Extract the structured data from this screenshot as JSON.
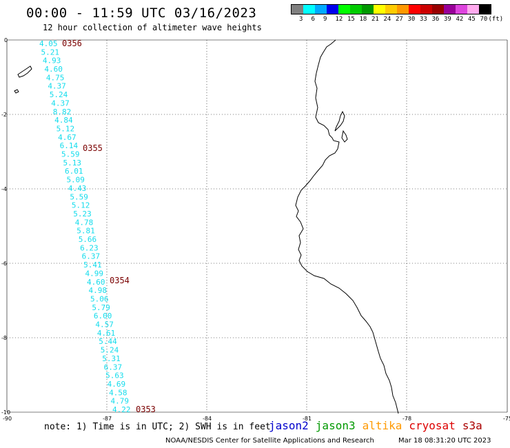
{
  "header": {
    "title": "00:00 - 11:59 UTC 03/16/2023",
    "subtitle": "12 hour collection of altimeter wave heights"
  },
  "colorbar": {
    "colors": [
      "#808080",
      "#00ffff",
      "#00aaff",
      "#0000ee",
      "#00ff00",
      "#00cc00",
      "#009900",
      "#ffff00",
      "#ffcc00",
      "#ff9900",
      "#ff0000",
      "#cc0000",
      "#990000",
      "#990099",
      "#dd44dd",
      "#ffaaee",
      "#000000"
    ],
    "labels": [
      "3",
      "6",
      "9",
      "12",
      "15",
      "18",
      "21",
      "24",
      "27",
      "30",
      "33",
      "36",
      "39",
      "42",
      "45",
      "70",
      "(ft)"
    ]
  },
  "map": {
    "lon_range": [
      -90,
      -75
    ],
    "lat_range": [
      -10,
      0
    ],
    "x_ticks": [
      "-90",
      "-87",
      "-84",
      "-81",
      "-78",
      "-75"
    ],
    "y_ticks": [
      "0",
      "-2",
      "-4",
      "-6",
      "-8",
      "-10"
    ],
    "track_color": "#14dcec",
    "wave_heights_ft": [
      "4.05",
      "5.21",
      "4.93",
      "4.60",
      "4.75",
      "4.37",
      "5.24",
      "4.37",
      "8.82",
      "4.84",
      "5.12",
      "4.67",
      "6.14",
      "5.59",
      "5.13",
      "6.01",
      "5.09",
      "4.43",
      "5.59",
      "5.12",
      "5.23",
      "4.78",
      "5.81",
      "5.66",
      "6.23",
      "6.37",
      "5.41",
      "4.99",
      "4.60",
      "4.98",
      "5.06",
      "5.79",
      "6.00",
      "4.57",
      "4.61",
      "5.44",
      "5.24",
      "5.31",
      "6.37",
      "5.63",
      "4.69",
      "4.58",
      "4.79",
      "4.22"
    ],
    "pass_labels": [
      "0356",
      "0355",
      "0354",
      "0353"
    ]
  },
  "legend": {
    "note": "note: 1) Time is in UTC; 2) SWH is in feet",
    "satellites": [
      {
        "name": "jason2",
        "color": "#0000cc"
      },
      {
        "name": "jason3",
        "color": "#009900"
      },
      {
        "name": "altika",
        "color": "#ff9900"
      },
      {
        "name": "cryosat",
        "color": "#dd0000"
      },
      {
        "name": "s3a",
        "color": "#aa0000"
      }
    ]
  },
  "footer": {
    "credit": "NOAA/NESDIS Center for Satellite Applications and Research",
    "timestamp": "Mar 18 08:31:20 UTC 2023"
  }
}
